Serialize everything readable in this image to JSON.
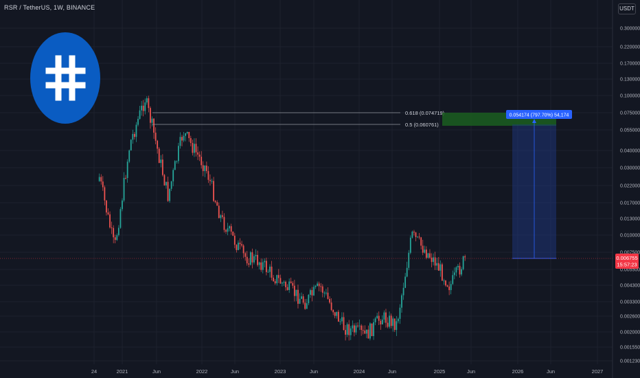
{
  "header": {
    "symbol": "RSR / TetherUS, 1W, BINANCE",
    "currency": "USDT"
  },
  "colors": {
    "background": "#131722",
    "up": "#26a69a",
    "down": "#ef5350",
    "grid": "#1e222d",
    "axis_text": "#b2b5be",
    "target_box": "#1e3a8a",
    "profit_box": "#1b5e20",
    "price_line": "#f23645",
    "logo": "#0a5cc2"
  },
  "logo": {
    "icon": "hash-icon"
  },
  "chart_data": {
    "type": "candlestick",
    "y_scale": "log",
    "y_ticks": [
      "0.300000",
      "0.220000",
      "0.170000",
      "0.130000",
      "0.100000",
      "0.075000",
      "0.055000",
      "0.040000",
      "0.030000",
      "0.022000",
      "0.017000",
      "0.013000",
      "0.010000",
      "0.007500",
      "0.005500",
      "0.004300",
      "0.003300",
      "0.002600",
      "0.002000",
      "0.001550",
      "0.001230"
    ],
    "x_ticks": [
      "24",
      "2021",
      "Jun",
      "2022",
      "Jun",
      "2023",
      "Jun",
      "2024",
      "Jun",
      "2025",
      "Jun",
      "2026",
      "Jun",
      "2027"
    ],
    "fib_levels": [
      {
        "label": "0.618 (0.074719)",
        "value": 0.074719
      },
      {
        "label": "0.5 (0.060761)",
        "value": 0.060761
      }
    ],
    "target": {
      "label": "0.054174 (797.70%) 54,174",
      "from": 0.006,
      "to": 0.0665
    },
    "current_price": {
      "value": "0.006755",
      "countdown": "15:57:23"
    },
    "approx_close_path": [
      {
        "x": "Oct 2020",
        "y": 0.026
      },
      {
        "x": "Dec 2020",
        "y": 0.008
      },
      {
        "x": "Feb 2021",
        "y": 0.045
      },
      {
        "x": "Apr 2021",
        "y": 0.095
      },
      {
        "x": "May 2021",
        "y": 0.058
      },
      {
        "x": "Jul 2021",
        "y": 0.019
      },
      {
        "x": "Sep 2021",
        "y": 0.055
      },
      {
        "x": "Dec 2021",
        "y": 0.03
      },
      {
        "x": "Feb 2022",
        "y": 0.013
      },
      {
        "x": "May 2022",
        "y": 0.007
      },
      {
        "x": "Jul 2022",
        "y": 0.0065
      },
      {
        "x": "Sep 2022",
        "y": 0.005
      },
      {
        "x": "Jan 2023",
        "y": 0.0033
      },
      {
        "x": "Mar 2023",
        "y": 0.0043
      },
      {
        "x": "Jun 2023",
        "y": 0.0022
      },
      {
        "x": "Sep 2023",
        "y": 0.0019
      },
      {
        "x": "Nov 2023",
        "y": 0.0026
      },
      {
        "x": "Jan 2024",
        "y": 0.0023
      },
      {
        "x": "Mar 2024",
        "y": 0.01
      },
      {
        "x": "Jun 2024",
        "y": 0.0065
      },
      {
        "x": "Aug 2024",
        "y": 0.0043
      },
      {
        "x": "Oct 2024",
        "y": 0.0068
      }
    ]
  }
}
